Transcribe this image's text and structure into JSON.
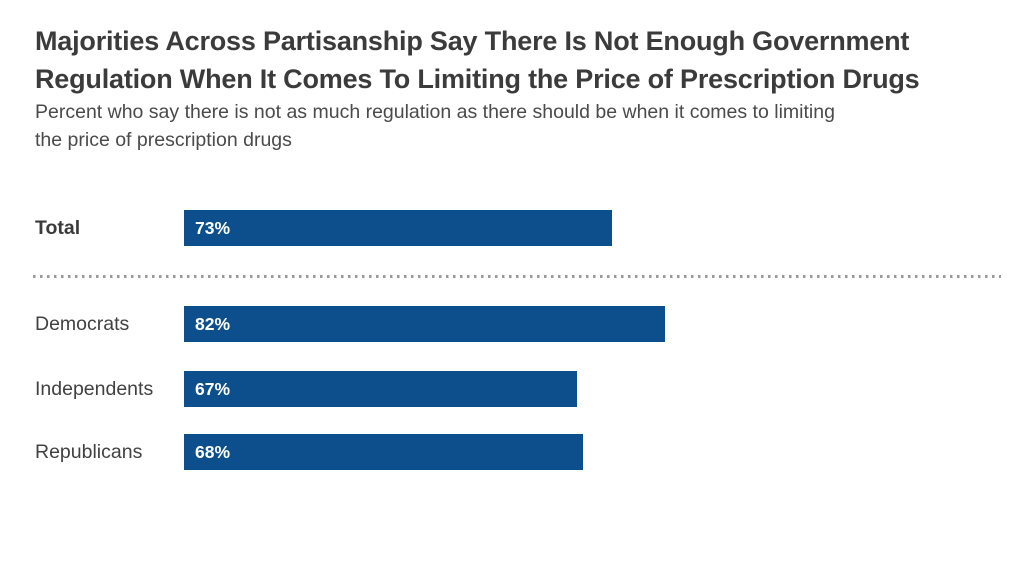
{
  "header": {
    "title_lines": [
      "Majorities Across Partisanship Say There Is Not Enough Government",
      "Regulation When It Comes To Limiting the Price of Prescription Drugs"
    ],
    "subtitle_lines": [
      "Percent who say there is not as much regulation as there should be when it comes to limiting",
      "the price of prescription drugs"
    ]
  },
  "chart_data": {
    "type": "bar",
    "orientation": "horizontal",
    "title": "Majorities Across Partisanship Say There Is Not Enough Government Regulation When It Comes To Limiting the Price of Prescription Drugs",
    "subtitle": "Percent who say there is not as much regulation as there should be when it comes to limiting the price of prescription drugs",
    "categories": [
      "Total",
      "Democrats",
      "Independents",
      "Republicans"
    ],
    "values": [
      73,
      82,
      67,
      68
    ],
    "value_labels": [
      "73%",
      "82%",
      "67%",
      "68%"
    ],
    "xlim": [
      0,
      100
    ],
    "grid": false,
    "legend": "none",
    "notes": "Dotted separator between Total and party breakdown rows; value labels shown in white inside left end of each bar"
  },
  "colors": {
    "bar": "#0d4e8c",
    "bar_value_text": "#ffffff",
    "title_text": "#3b3b3b",
    "subtitle_text": "#4a4a4a",
    "category_label_text": "#414141",
    "separator_dots": "#999999",
    "background": "#ffffff"
  }
}
